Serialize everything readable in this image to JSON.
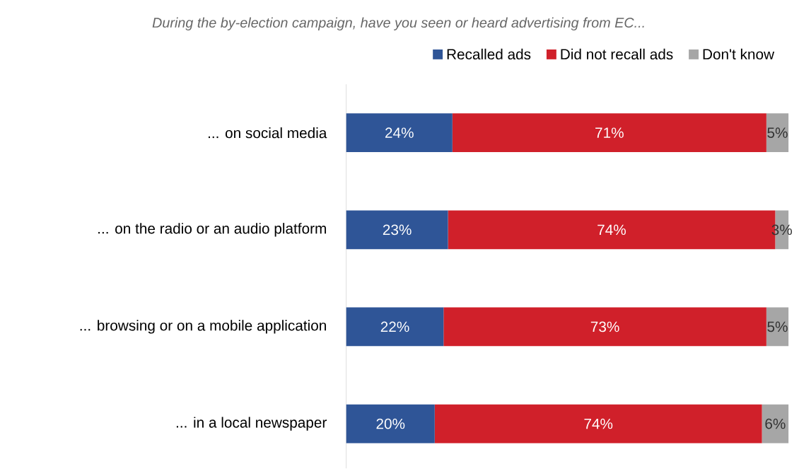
{
  "chart_data": {
    "type": "bar",
    "orientation": "horizontal",
    "stacked": true,
    "title": "During the by-election campaign, have you seen or heard advertising from EC...",
    "categories": [
      "... on social media",
      "... on the radio or an audio platform",
      "... browsing or on a mobile application",
      "... in a local newspaper"
    ],
    "series": [
      {
        "name": "Recalled ads",
        "color": "#2f5597",
        "values": [
          24,
          23,
          22,
          20
        ],
        "value_labels": [
          "24%",
          "23%",
          "22%",
          "20%"
        ]
      },
      {
        "name": "Did not recall ads",
        "color": "#d0202a",
        "values": [
          71,
          74,
          73,
          74
        ],
        "value_labels": [
          "71%",
          "74%",
          "73%",
          "74%"
        ]
      },
      {
        "name": "Don't know",
        "color": "#a6a6a6",
        "values": [
          5,
          3,
          5,
          6
        ],
        "value_labels": [
          "5%",
          "3%",
          "5%",
          "6%"
        ]
      }
    ],
    "xlim": [
      0,
      100
    ],
    "legend": "top right",
    "tick_labels": "y"
  }
}
